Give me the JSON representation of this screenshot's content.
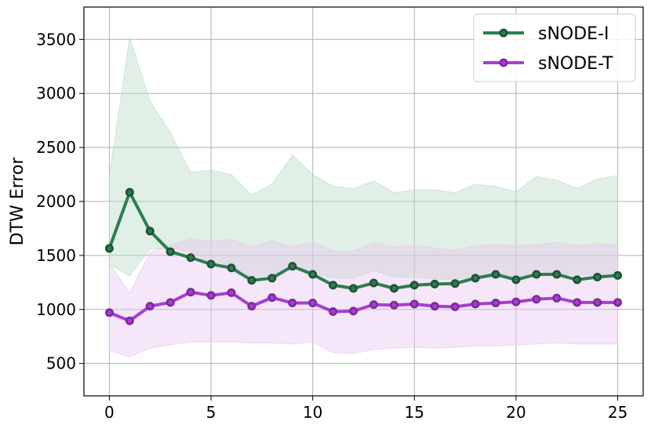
{
  "chart_data": {
    "type": "line",
    "title": "",
    "xlabel": "",
    "ylabel": "DTW Error",
    "xlim": [
      -1.25,
      26.25
    ],
    "ylim": [
      200,
      3800
    ],
    "xticks": [
      0,
      5,
      10,
      15,
      20,
      25
    ],
    "yticks": [
      500,
      1000,
      1500,
      2000,
      2500,
      3000,
      3500
    ],
    "grid": true,
    "legend_position": "top-right",
    "x": [
      0,
      1,
      2,
      3,
      4,
      5,
      6,
      7,
      8,
      9,
      10,
      11,
      12,
      13,
      14,
      15,
      16,
      17,
      18,
      19,
      20,
      21,
      22,
      23,
      24,
      25
    ],
    "series": [
      {
        "name": "sNODE-I",
        "line_color": "#2e7d4f",
        "marker_edge": "#1e5234",
        "marker_face": "#2e7d4f",
        "band_color": "#b8dcc4",
        "values": [
          1565,
          2085,
          1725,
          1535,
          1480,
          1420,
          1385,
          1270,
          1290,
          1400,
          1325,
          1225,
          1195,
          1245,
          1195,
          1225,
          1235,
          1240,
          1290,
          1325,
          1275,
          1325,
          1325,
          1275,
          1300,
          1315
        ],
        "upper": [
          2240,
          3520,
          2930,
          2640,
          2270,
          2290,
          2250,
          2060,
          2160,
          2430,
          2250,
          2140,
          2120,
          2190,
          2080,
          2110,
          2110,
          2080,
          2160,
          2140,
          2090,
          2230,
          2200,
          2120,
          2210,
          2240
        ],
        "lower": [
          1420,
          1310,
          1560,
          1570,
          1530,
          1440,
          1410,
          1300,
          1320,
          1390,
          1350,
          1290,
          1290,
          1360,
          1300,
          1300,
          1280,
          1280,
          1300,
          1300,
          1310,
          1300,
          1330,
          1320,
          1320,
          1300
        ]
      },
      {
        "name": "sNODE-T",
        "line_color": "#a63fcf",
        "marker_edge": "#7a2a9a",
        "marker_face": "#a63fcf",
        "band_color": "#e8c4f0",
        "values": [
          970,
          895,
          1030,
          1065,
          1160,
          1130,
          1155,
          1030,
          1110,
          1060,
          1060,
          980,
          985,
          1045,
          1040,
          1050,
          1030,
          1025,
          1050,
          1060,
          1070,
          1095,
          1105,
          1065,
          1065,
          1065
        ],
        "upper": [
          1430,
          1150,
          1530,
          1600,
          1650,
          1630,
          1650,
          1580,
          1640,
          1580,
          1630,
          1540,
          1540,
          1620,
          1580,
          1590,
          1570,
          1550,
          1590,
          1600,
          1590,
          1600,
          1620,
          1590,
          1610,
          1600
        ],
        "lower": [
          620,
          560,
          640,
          670,
          700,
          700,
          700,
          690,
          690,
          680,
          700,
          600,
          590,
          630,
          640,
          650,
          640,
          650,
          660,
          660,
          670,
          680,
          690,
          680,
          680,
          680
        ]
      }
    ]
  }
}
